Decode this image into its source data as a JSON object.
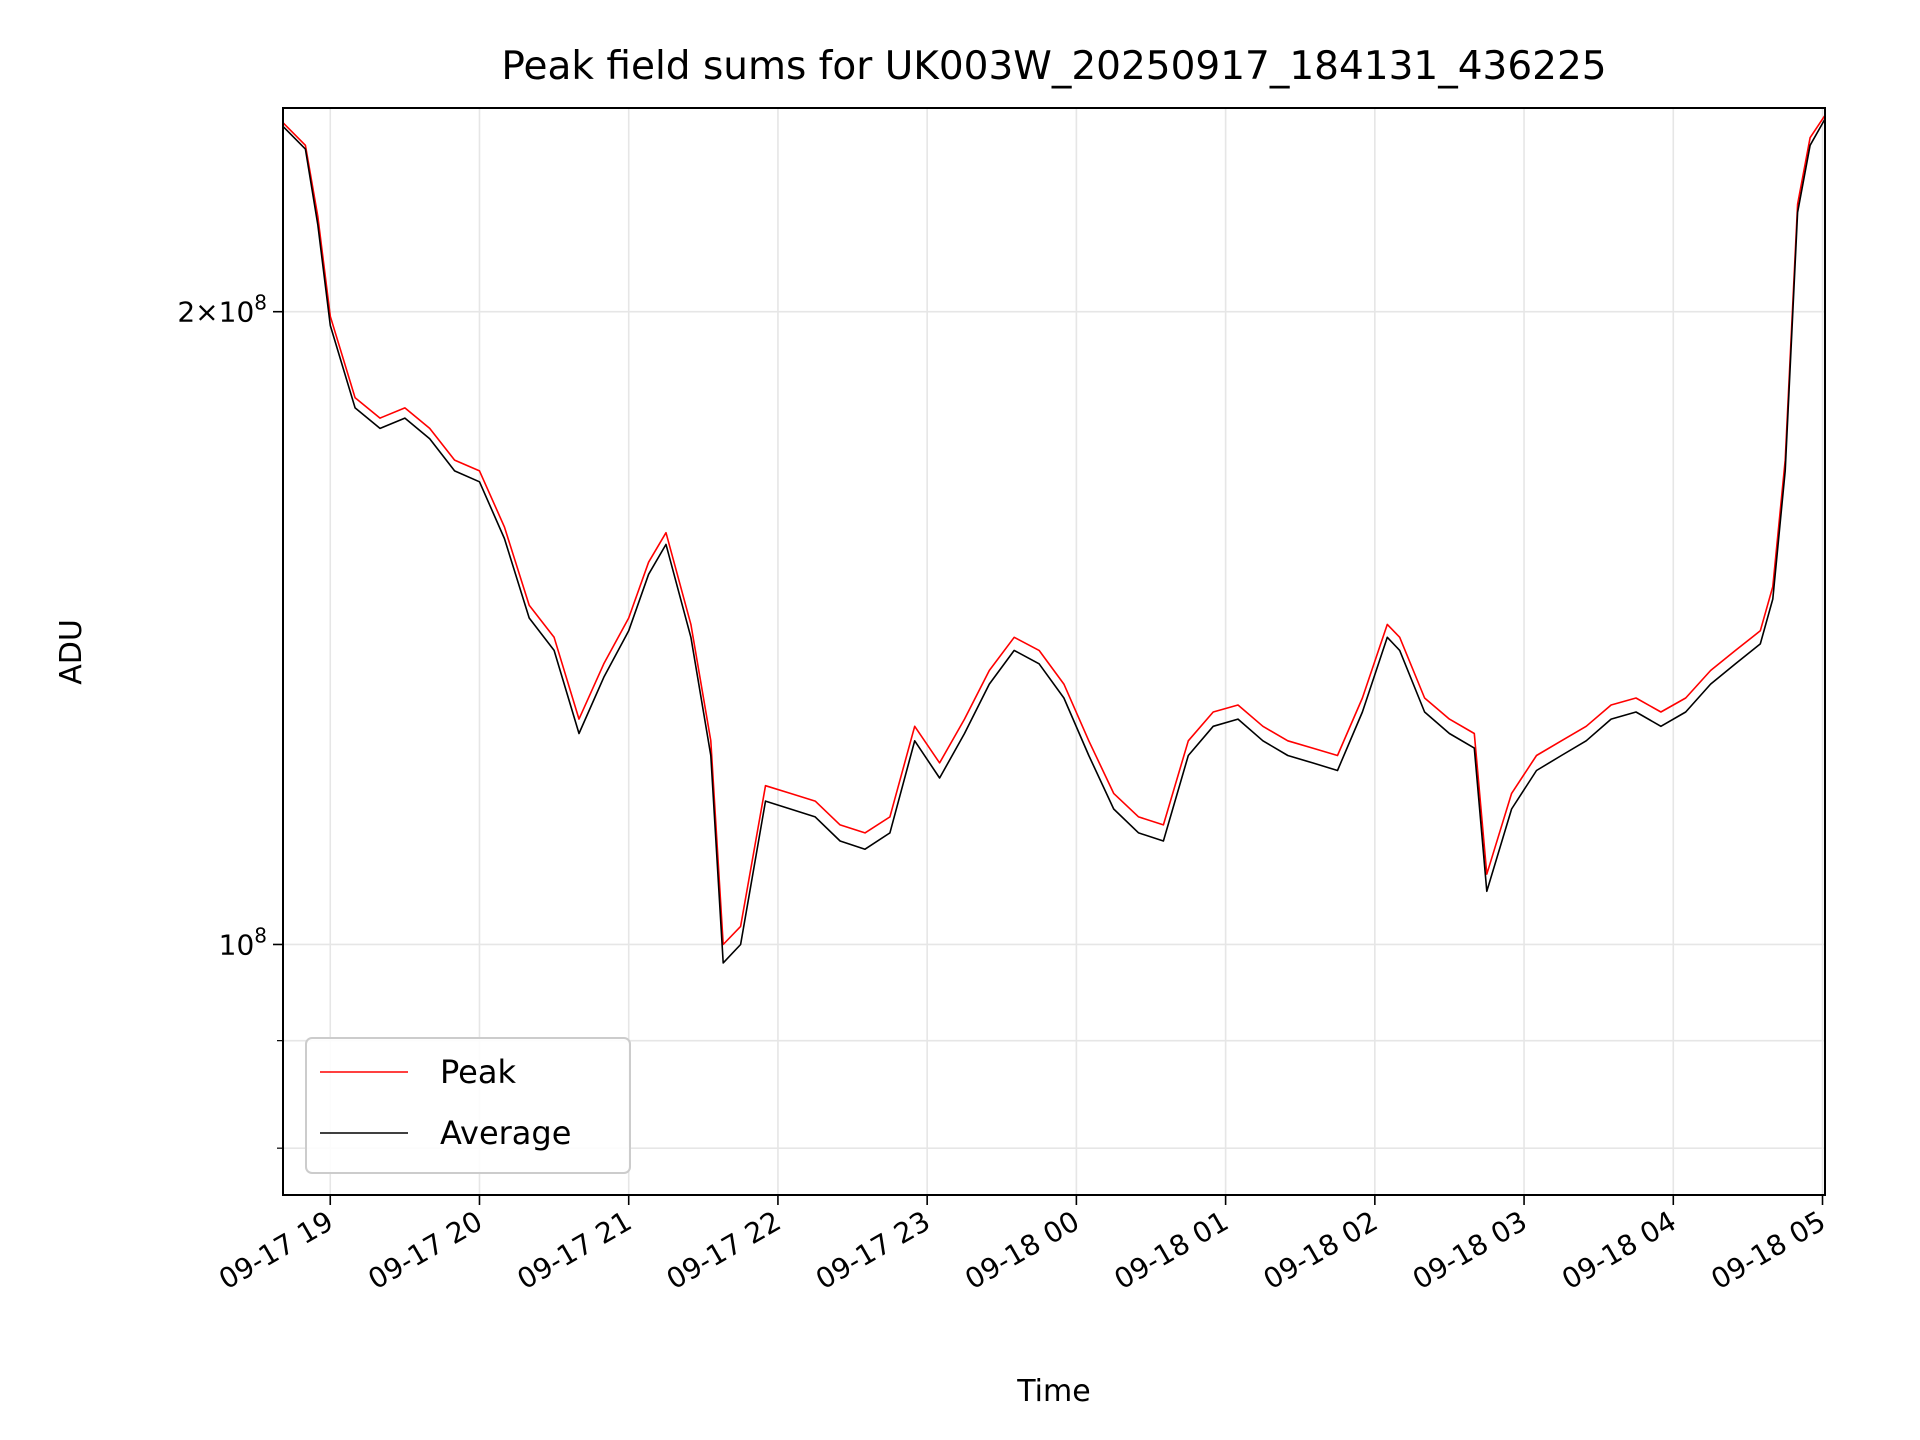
{
  "chart_data": {
    "type": "line",
    "title": "Peak field sums for UK003W_20250917_184131_436225",
    "xlabel": "Time",
    "ylabel": "ADU",
    "y_scale": "log",
    "ylim": [
      76000000,
      250000000
    ],
    "xlim": [
      "2025-09-17 18:41",
      "2025-09-18 05:01"
    ],
    "x_ticks": [
      "09-17 19",
      "09-17 20",
      "09-17 21",
      "09-17 22",
      "09-17 23",
      "09-18 00",
      "09-18 01",
      "09-18 02",
      "09-18 03",
      "09-18 04",
      "09-18 05"
    ],
    "y_tick_labels": [
      "10^8",
      "2×10^8"
    ],
    "y_major_ticks": [
      100000000,
      200000000
    ],
    "y_minor_ticks": [
      80000000,
      90000000
    ],
    "grid": true,
    "legend_position": "lower-left",
    "x": [
      "2025-09-17 18:41",
      "2025-09-17 18:50",
      "2025-09-17 18:55",
      "2025-09-17 19:00",
      "2025-09-17 19:10",
      "2025-09-17 19:20",
      "2025-09-17 19:30",
      "2025-09-17 19:40",
      "2025-09-17 19:50",
      "2025-09-17 20:00",
      "2025-09-17 20:10",
      "2025-09-17 20:20",
      "2025-09-17 20:30",
      "2025-09-17 20:40",
      "2025-09-17 20:50",
      "2025-09-17 21:00",
      "2025-09-17 21:08",
      "2025-09-17 21:15",
      "2025-09-17 21:25",
      "2025-09-17 21:33",
      "2025-09-17 21:38",
      "2025-09-17 21:45",
      "2025-09-17 21:55",
      "2025-09-17 22:05",
      "2025-09-17 22:15",
      "2025-09-17 22:25",
      "2025-09-17 22:35",
      "2025-09-17 22:45",
      "2025-09-17 22:55",
      "2025-09-17 23:05",
      "2025-09-17 23:15",
      "2025-09-17 23:25",
      "2025-09-17 23:35",
      "2025-09-17 23:45",
      "2025-09-17 23:55",
      "2025-09-18 00:05",
      "2025-09-18 00:15",
      "2025-09-18 00:25",
      "2025-09-18 00:35",
      "2025-09-18 00:45",
      "2025-09-18 00:55",
      "2025-09-18 01:05",
      "2025-09-18 01:15",
      "2025-09-18 01:25",
      "2025-09-18 01:35",
      "2025-09-18 01:45",
      "2025-09-18 01:55",
      "2025-09-18 02:05",
      "2025-09-18 02:10",
      "2025-09-18 02:20",
      "2025-09-18 02:30",
      "2025-09-18 02:40",
      "2025-09-18 02:45",
      "2025-09-18 02:55",
      "2025-09-18 03:05",
      "2025-09-18 03:15",
      "2025-09-18 03:25",
      "2025-09-18 03:35",
      "2025-09-18 03:45",
      "2025-09-18 03:55",
      "2025-09-18 04:05",
      "2025-09-18 04:15",
      "2025-09-18 04:25",
      "2025-09-18 04:35",
      "2025-09-18 04:40",
      "2025-09-18 04:45",
      "2025-09-18 04:50",
      "2025-09-18 04:55",
      "2025-09-18 05:01"
    ],
    "series": [
      {
        "name": "Peak",
        "color": "#ff0000",
        "values": [
          246000000,
          240000000,
          222000000,
          199000000,
          182000000,
          178000000,
          180000000,
          176000000,
          170000000,
          168000000,
          158000000,
          145000000,
          140000000,
          128000000,
          136000000,
          143000000,
          152000000,
          157000000,
          142000000,
          125000000,
          100000000,
          102000000,
          119000000,
          118000000,
          117000000,
          114000000,
          113000000,
          115000000,
          127000000,
          122000000,
          128000000,
          135000000,
          140000000,
          138000000,
          133000000,
          125000000,
          118000000,
          115000000,
          114000000,
          125000000,
          129000000,
          130000000,
          127000000,
          125000000,
          124000000,
          123000000,
          131000000,
          142000000,
          140000000,
          131000000,
          128000000,
          126000000,
          108000000,
          118000000,
          123000000,
          125000000,
          127000000,
          130000000,
          131000000,
          129000000,
          131000000,
          135000000,
          138000000,
          141000000,
          148000000,
          170000000,
          225000000,
          242000000,
          248000000
        ]
      },
      {
        "name": "Average",
        "color": "#000000",
        "values": [
          245000000,
          239000000,
          220000000,
          197000000,
          180000000,
          176000000,
          178000000,
          174000000,
          168000000,
          166000000,
          156000000,
          143000000,
          138000000,
          126000000,
          134000000,
          141000000,
          150000000,
          155000000,
          140000000,
          123000000,
          98000000,
          100000000,
          117000000,
          116000000,
          115000000,
          112000000,
          111000000,
          113000000,
          125000000,
          120000000,
          126000000,
          133000000,
          138000000,
          136000000,
          131000000,
          123000000,
          116000000,
          113000000,
          112000000,
          123000000,
          127000000,
          128000000,
          125000000,
          123000000,
          122000000,
          121000000,
          129000000,
          140000000,
          138000000,
          129000000,
          126000000,
          124000000,
          106000000,
          116000000,
          121000000,
          123000000,
          125000000,
          128000000,
          129000000,
          127000000,
          129000000,
          133000000,
          136000000,
          139000000,
          146000000,
          168000000,
          223000000,
          240000000,
          247000000
        ]
      }
    ]
  }
}
